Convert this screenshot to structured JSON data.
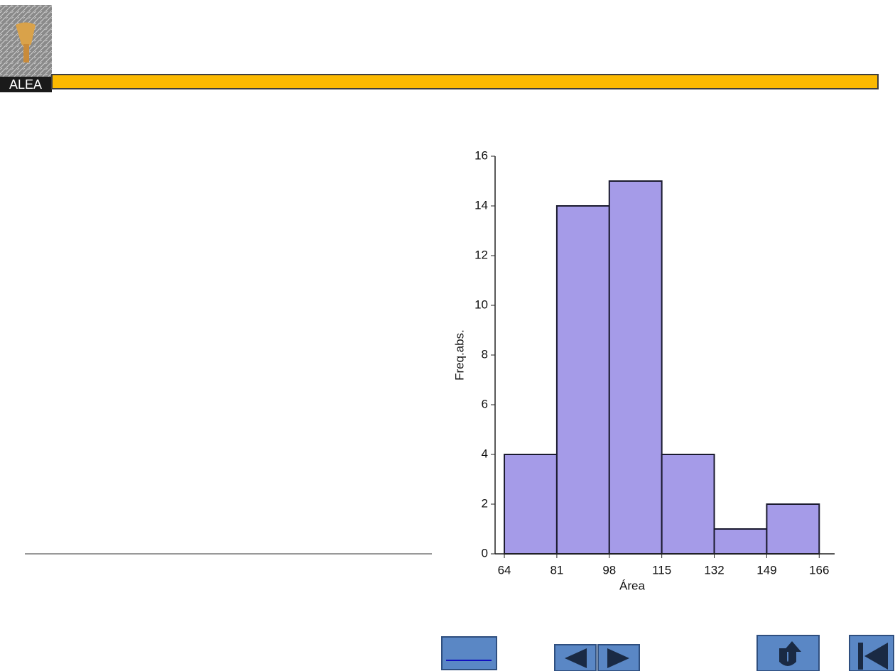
{
  "logo": {
    "text": "ALEA"
  },
  "chart_data": {
    "type": "histogram",
    "x_label": "Área",
    "y_label": "Freq.abs.",
    "bins": [
      64,
      81,
      98,
      115,
      132,
      149,
      166
    ],
    "values": [
      4,
      14,
      15,
      4,
      1,
      2
    ],
    "color": "#a59be8",
    "edge_color": "#1a1a2e",
    "xlim": [
      61,
      171
    ],
    "xticks": [
      64,
      81,
      98,
      115,
      132,
      149,
      166
    ],
    "ylim": [
      0,
      16
    ],
    "yticks": [
      0,
      2,
      4,
      6,
      8,
      10,
      12,
      14,
      16
    ],
    "grid": false
  }
}
